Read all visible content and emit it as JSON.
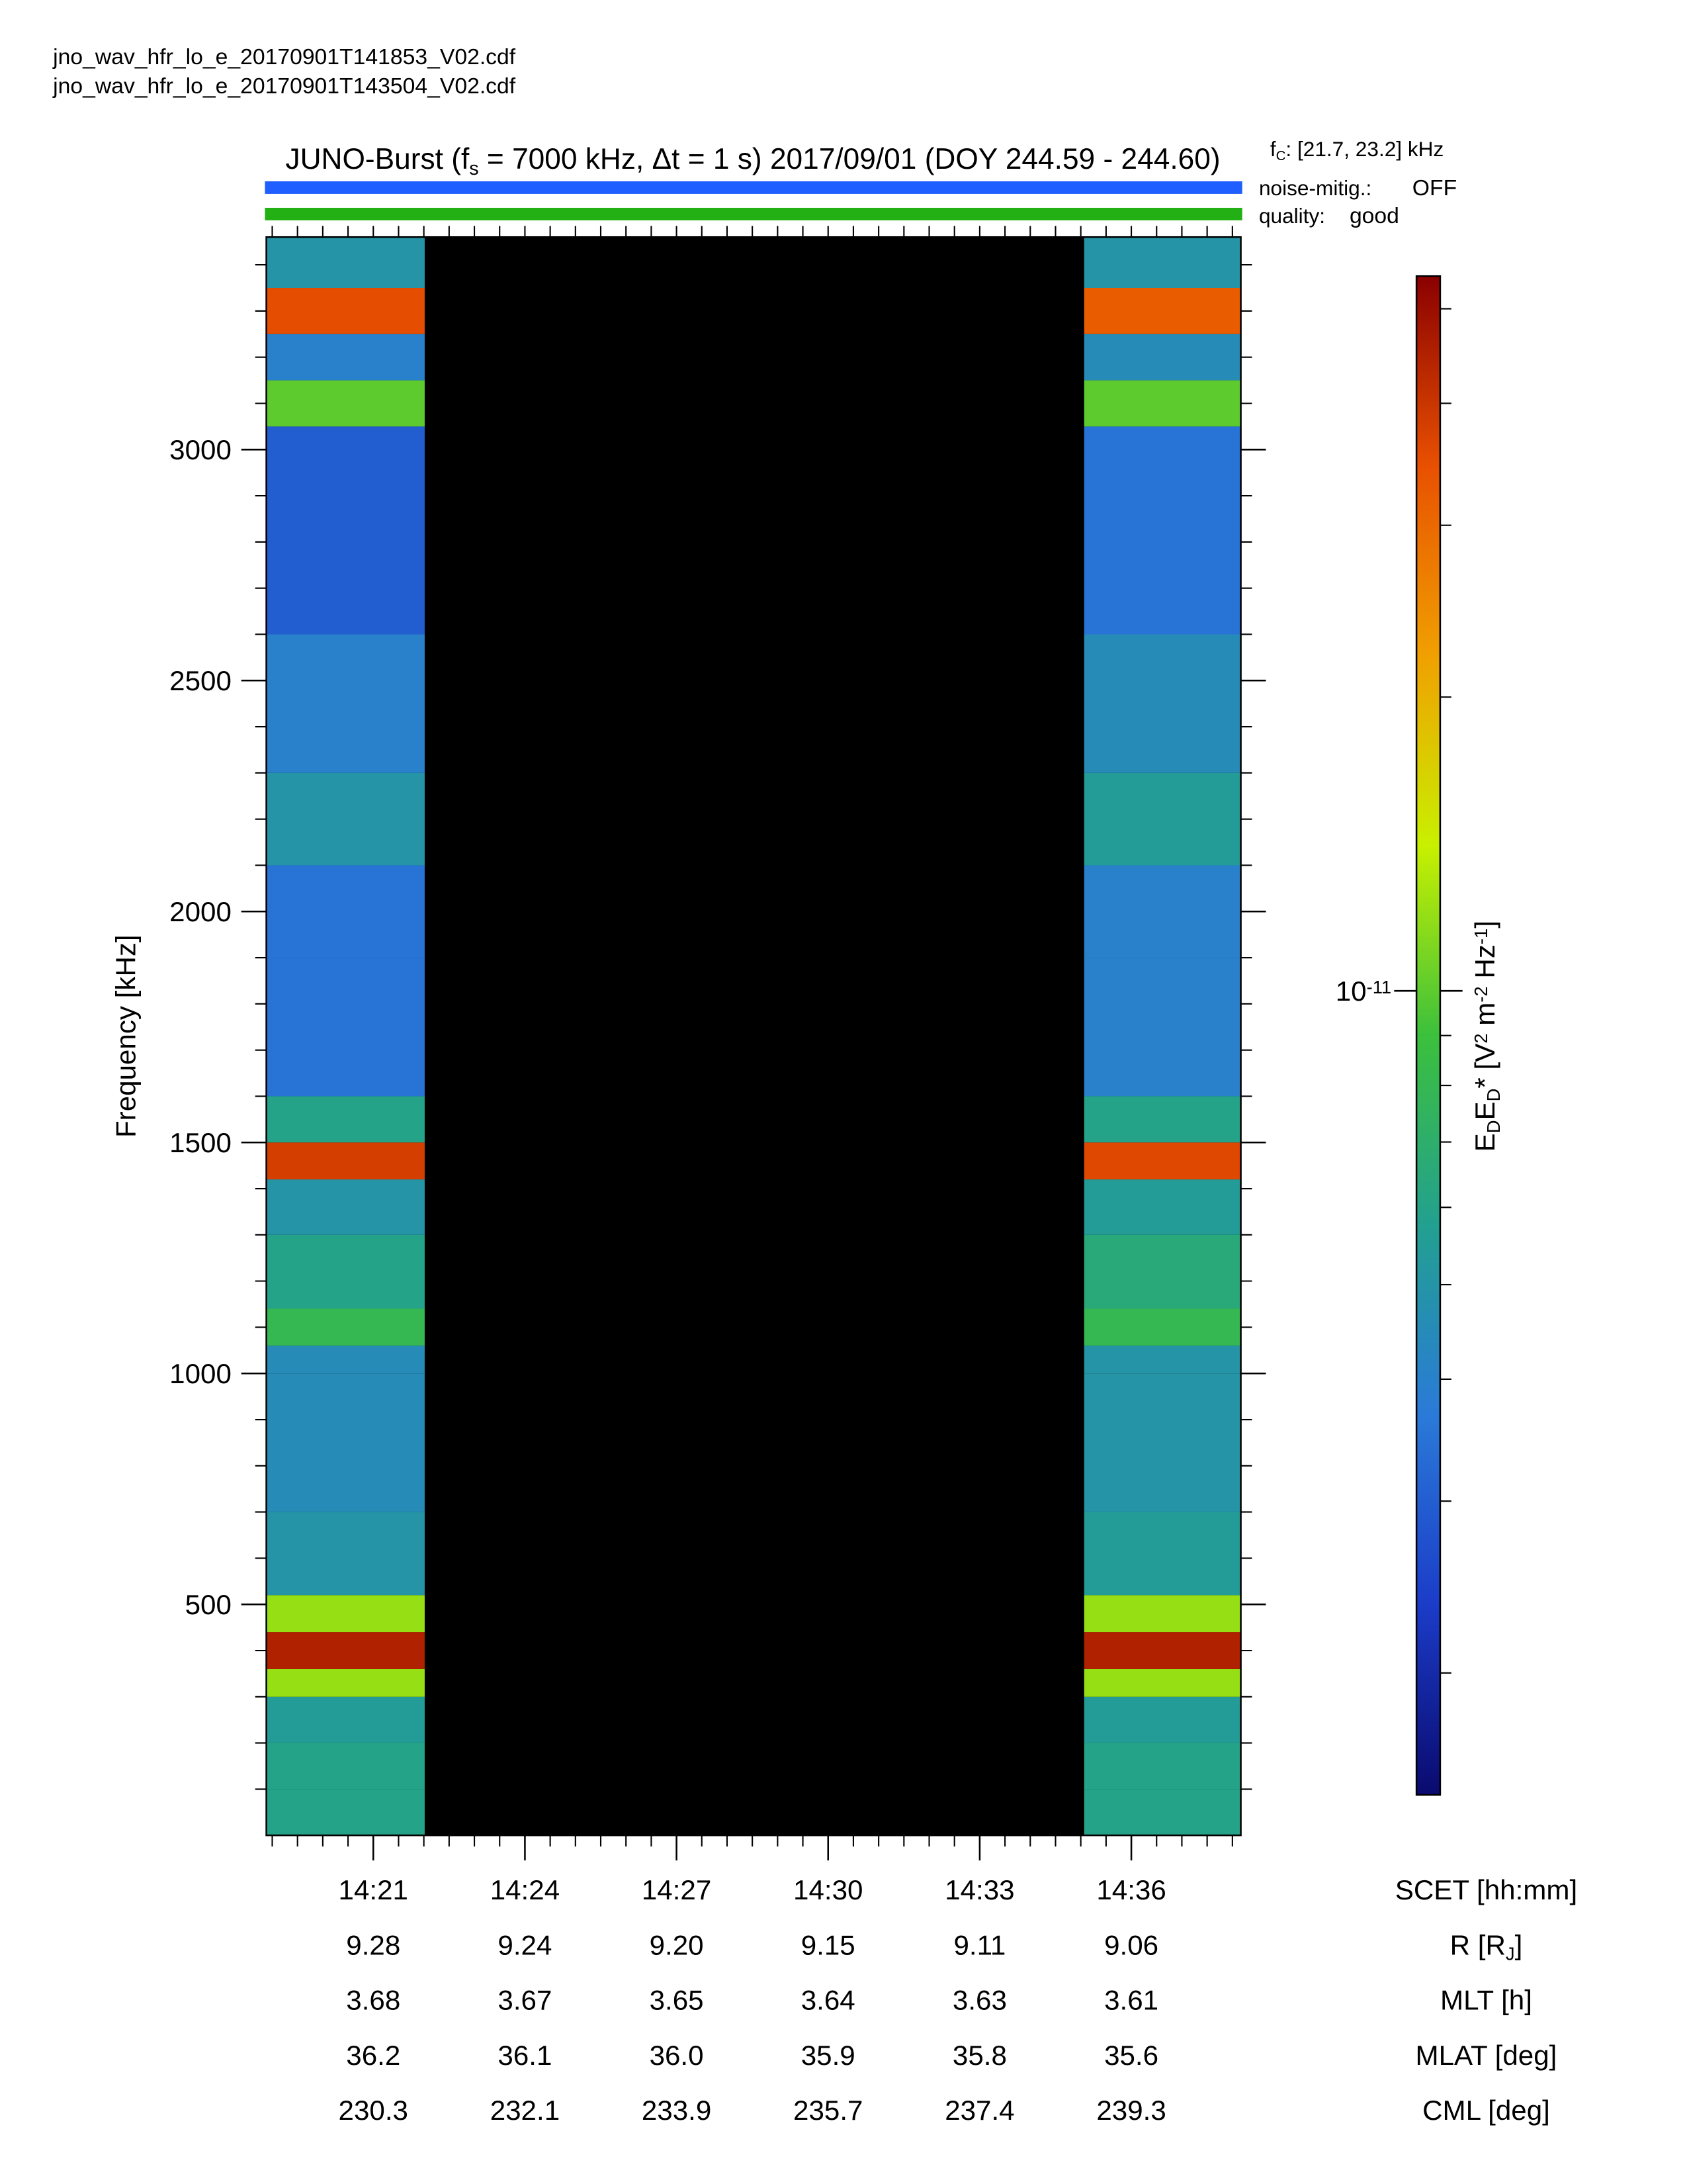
{
  "files": [
    "jno_wav_hfr_lo_e_20170901T141853_V02.cdf",
    "jno_wav_hfr_lo_e_20170901T143504_V02.cdf"
  ],
  "chart_data": {
    "type": "spectrogram",
    "title_parts": [
      "JUNO-Burst (f",
      "s",
      " = 7000 kHz, Δt = 1 s)  2017/09/01 (DOY 244.59 - 244.60)"
    ],
    "fc_parts": [
      "f",
      "C",
      ": [21.7, 23.2] kHz"
    ],
    "noise_label": "noise-mitig.:",
    "noise_value": "OFF",
    "noise_color": "#1f5fff",
    "quality_label": "quality:",
    "quality_value": "good",
    "quality_color": "#22b014",
    "ylabel": "Frequency [kHz]",
    "ylim": [
      0,
      3460
    ],
    "yticks": [
      500,
      1000,
      1500,
      2000,
      2500,
      3000
    ],
    "yminor": 100,
    "xlim": [
      "14:18:53",
      "14:38:10"
    ],
    "xticks": [
      "14:21",
      "14:24",
      "14:27",
      "14:30",
      "14:33",
      "14:36"
    ],
    "xminor_seconds": 30,
    "y_edges": [
      0,
      100,
      200,
      300,
      360,
      440,
      520,
      700,
      1000,
      1060,
      1140,
      1300,
      1420,
      1500,
      1600,
      1900,
      2100,
      2300,
      2600,
      3050,
      3150,
      3250,
      3350,
      3460
    ],
    "segments": [
      {
        "x": [
          "14:18:53",
          "14:22:01"
        ],
        "z": [
          6e-12,
          6e-12,
          5.5e-12,
          1.2e-11,
          4.5e-11,
          1.2e-11,
          5e-12,
          4.5e-12,
          4.5e-12,
          8e-12,
          6e-12,
          5e-12,
          3.8e-11,
          6e-12,
          3.5e-12,
          3.5e-12,
          5e-12,
          4e-12,
          3e-12,
          1e-11,
          4e-12,
          3.5e-11,
          5e-12
        ]
      },
      {
        "x": [
          "14:35:04",
          "14:38:10"
        ],
        "z": [
          6e-12,
          6e-12,
          5.5e-12,
          1.2e-11,
          4.5e-11,
          1.2e-11,
          5.5e-12,
          5e-12,
          5e-12,
          8e-12,
          6.5e-12,
          5.5e-12,
          3.6e-11,
          6e-12,
          4e-12,
          4e-12,
          5.5e-12,
          4.5e-12,
          3.5e-12,
          1e-11,
          4.5e-12,
          3.2e-11,
          5e-12
        ]
      }
    ],
    "zlim": [
      1.5e-12,
      5.4e-11
    ],
    "zlog": true,
    "colormap": [
      "#0a0a6e",
      "#1b3cc8",
      "#2a7ad8",
      "#22a090",
      "#3cc03c",
      "#c8f000",
      "#f0a000",
      "#e85000",
      "#8a0000"
    ],
    "zticks": [
      {
        "value": 1e-11,
        "base": "10",
        "exp": "-11"
      }
    ],
    "zlabel_parts": [
      "E",
      "D",
      "E",
      "D",
      "* [V",
      "2",
      " m",
      "-2",
      " Hz",
      "-1",
      "]"
    ],
    "ephemeris": [
      {
        "label": [
          "SCET [hh:mm]"
        ],
        "values": null
      },
      {
        "label": [
          "R [R",
          "J",
          "]"
        ],
        "values": [
          "9.28",
          "9.24",
          "9.20",
          "9.15",
          "9.11",
          "9.06"
        ]
      },
      {
        "label": [
          "MLT [h]"
        ],
        "values": [
          "3.68",
          "3.67",
          "3.65",
          "3.64",
          "3.63",
          "3.61"
        ]
      },
      {
        "label": [
          "MLAT [deg]"
        ],
        "values": [
          "36.2",
          "36.1",
          "36.0",
          "35.9",
          "35.8",
          "35.6"
        ]
      },
      {
        "label": [
          "CML [deg]"
        ],
        "values": [
          "230.3",
          "232.1",
          "233.9",
          "235.7",
          "237.4",
          "239.3"
        ]
      }
    ]
  }
}
